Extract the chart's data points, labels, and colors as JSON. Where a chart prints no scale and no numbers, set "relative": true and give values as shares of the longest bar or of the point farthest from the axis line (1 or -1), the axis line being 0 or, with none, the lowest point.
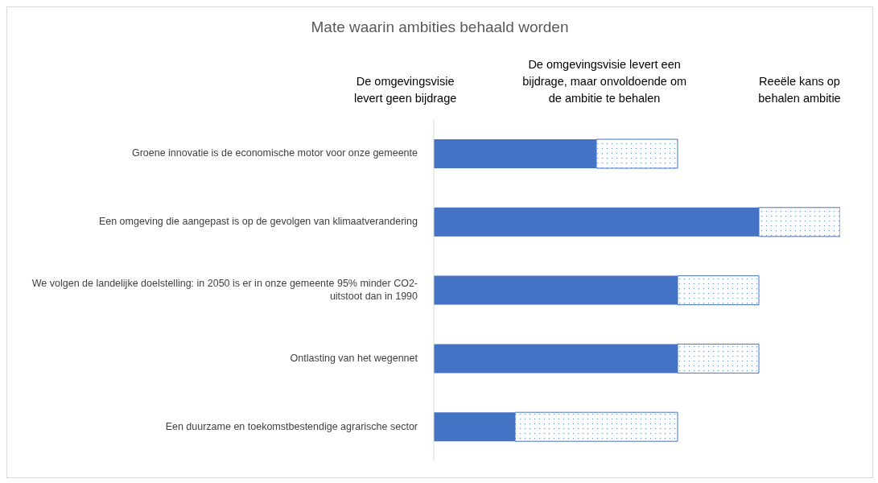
{
  "chart_data": {
    "type": "bar",
    "orientation": "horizontal",
    "stacked": true,
    "relative": true,
    "title": "Mate waarin ambities behaald worden",
    "annotations": [
      "De omgevingsvisie levert geen bijdrage",
      "De omgevingsvisie levert een bijdrage, maar onvoldoende om de ambitie te behalen",
      "Reeële kans op behalen ambitie"
    ],
    "categories": [
      "Groene innovatie is de economische motor voor onze gemeente",
      "Een omgeving die aangepast is op de gevolgen van klimaatverandering",
      "We volgen de landelijke doelstelling: in 2050 is er in onze gemeente 95% minder CO2-uitstoot dan in 1990",
      "Ontlasting van het wegennet",
      "Een duurzame en toekomstbestendige agrarische sector"
    ],
    "series": [
      {
        "color": "#4472c4",
        "values": [
          0.4,
          0.8,
          0.6,
          0.6,
          0.2
        ]
      },
      {
        "color": "#4472c4",
        "values": [
          0.2,
          0.2,
          0.2,
          0.2,
          0.4
        ]
      }
    ],
    "legend": false
  }
}
